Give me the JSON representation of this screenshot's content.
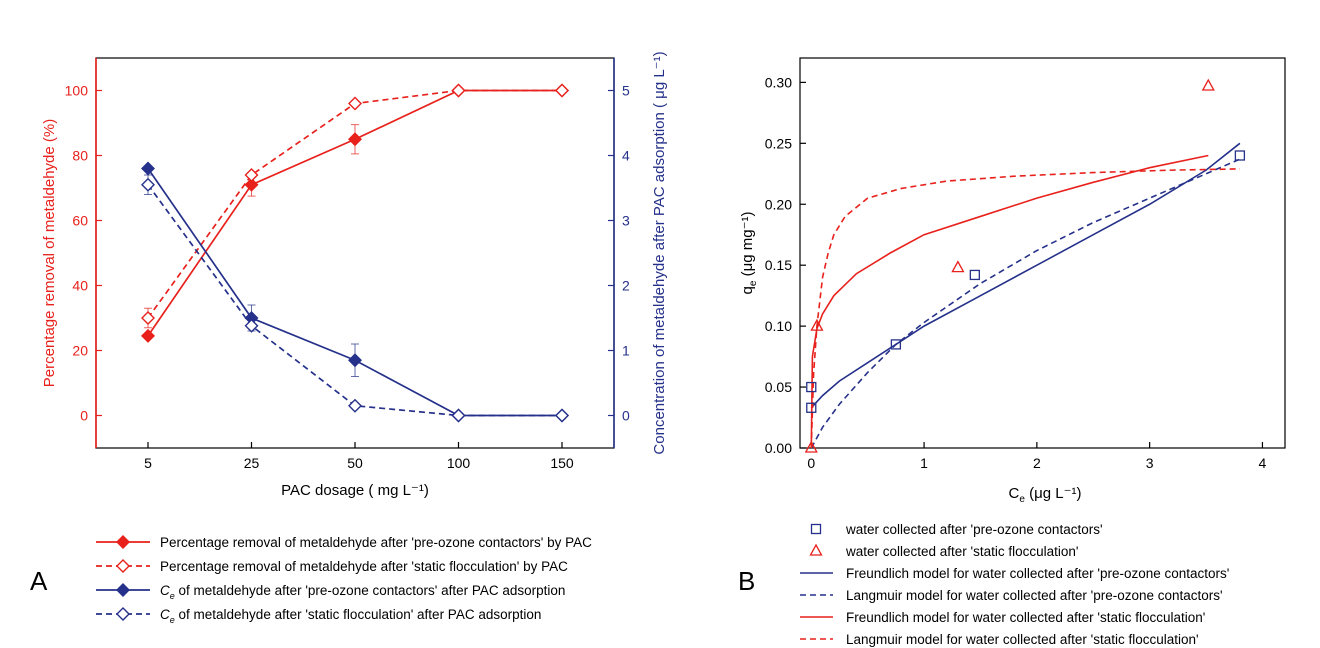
{
  "panels": {
    "a": {
      "letter": "A"
    },
    "b": {
      "letter": "B"
    }
  },
  "colors": {
    "red": "#e8211c",
    "blue": "#25318a",
    "axis": "#000000"
  },
  "chart_data": [
    {
      "id": "A",
      "type": "line",
      "categories": [
        "5",
        "25",
        "50",
        "100",
        "150"
      ],
      "xlabel": "PAC dosage ( mg L⁻¹)",
      "ylabel_left": "Percentage removal of metaldehyde (%)",
      "ylabel_right": "Concentration of metaldehyde after PAC adsorption  ( μg L⁻¹)",
      "ylim_left": [
        -10,
        110
      ],
      "yticks_left": [
        0,
        20,
        40,
        60,
        80,
        100
      ],
      "ylim_right": [
        -0.5,
        5.5
      ],
      "yticks_right": [
        0,
        1,
        2,
        3,
        4,
        5
      ],
      "grid": false,
      "legend_position": "below",
      "series": [
        {
          "name": "Percentage removal of metaldehyde after 'pre-ozone contactors' by PAC",
          "axis": "left",
          "color": "red",
          "dash": false,
          "marker": "diamond-filled",
          "values": [
            24.5,
            71,
            85,
            100,
            100
          ],
          "errors": [
            0,
            3.5,
            4.5,
            0,
            0
          ]
        },
        {
          "name": "Percentage removal of metaldehyde after 'static flocculation' by PAC",
          "axis": "left",
          "color": "red",
          "dash": true,
          "marker": "diamond-open",
          "values": [
            30,
            74,
            96,
            100,
            100
          ],
          "errors": [
            3,
            0,
            0,
            0,
            0
          ]
        },
        {
          "name": "of metaldehyde after 'pre-ozone contactors' after PAC adsorption",
          "name_prefix": "C",
          "name_sub": "e",
          "axis": "right",
          "color": "blue",
          "dash": false,
          "marker": "diamond-filled",
          "values": [
            3.8,
            1.5,
            0.85,
            0,
            0
          ],
          "errors": [
            0,
            0.2,
            0.25,
            0,
            0
          ]
        },
        {
          "name": "of metaldehyde after 'static flocculation' after PAC adsorption",
          "name_prefix": "C",
          "name_sub": "e",
          "axis": "right",
          "color": "blue",
          "dash": true,
          "marker": "diamond-open",
          "values": [
            3.55,
            1.38,
            0.15,
            0,
            0
          ],
          "errors": [
            0.15,
            0,
            0,
            0,
            0
          ]
        }
      ]
    },
    {
      "id": "B",
      "type": "scatter",
      "xlabel_main": "C",
      "xlabel_sub": "e",
      "xlabel_rest": " (μg L⁻¹)",
      "ylabel_main": "q",
      "ylabel_sub": "e",
      "ylabel_rest": " (μg mg⁻¹)",
      "xlim": [
        -0.1,
        4.2
      ],
      "xticks": [
        0,
        1,
        2,
        3,
        4
      ],
      "ylim": [
        0,
        0.32
      ],
      "yticks": [
        "0.00",
        "0.05",
        "0.10",
        "0.15",
        "0.20",
        "0.25",
        "0.30"
      ],
      "grid": false,
      "legend_position": "below",
      "scatter_series": [
        {
          "name": "water collected after 'pre-ozone contactors'",
          "color": "blue",
          "marker": "square-open",
          "x": [
            0,
            0,
            0.75,
            1.45,
            3.8
          ],
          "y": [
            0.033,
            0.05,
            0.085,
            0.142,
            0.24
          ]
        },
        {
          "name": "water collected after 'static flocculation'",
          "color": "red",
          "marker": "triangle-open",
          "x": [
            0,
            0.05,
            1.3,
            3.52
          ],
          "y": [
            0.0,
            0.1,
            0.148,
            0.297
          ]
        }
      ],
      "model_series": [
        {
          "name": "Freundlich model for water collected after 'pre-ozone contactors'",
          "color": "blue",
          "dash": false,
          "x": [
            0,
            0.1,
            0.25,
            0.5,
            0.75,
            1,
            1.5,
            2,
            2.5,
            3,
            3.5,
            3.8
          ],
          "y": [
            0.033,
            0.043,
            0.055,
            0.07,
            0.085,
            0.1,
            0.125,
            0.15,
            0.175,
            0.2,
            0.228,
            0.25
          ]
        },
        {
          "name": "Langmuir model for water collected after 'pre-ozone contactors'",
          "color": "blue",
          "dash": true,
          "x": [
            0,
            0.1,
            0.25,
            0.5,
            0.75,
            1,
            1.5,
            2,
            2.5,
            3,
            3.5,
            3.8
          ],
          "y": [
            0.0,
            0.017,
            0.036,
            0.062,
            0.085,
            0.103,
            0.135,
            0.162,
            0.185,
            0.205,
            0.225,
            0.237
          ]
        },
        {
          "name": "Freundlich model for water collected after 'static flocculation'",
          "color": "red",
          "dash": false,
          "x": [
            0,
            0.01,
            0.05,
            0.1,
            0.2,
            0.4,
            0.7,
            1,
            1.5,
            2,
            2.5,
            3,
            3.52
          ],
          "y": [
            0.0,
            0.075,
            0.098,
            0.11,
            0.125,
            0.143,
            0.16,
            0.175,
            0.19,
            0.205,
            0.218,
            0.23,
            0.24
          ]
        },
        {
          "name": "Langmuir model for water collected after 'static flocculation'",
          "color": "red",
          "dash": true,
          "x": [
            0,
            0.02,
            0.05,
            0.1,
            0.15,
            0.2,
            0.3,
            0.5,
            0.8,
            1.2,
            1.8,
            2.5,
            3.2,
            3.8
          ],
          "y": [
            0.0,
            0.06,
            0.1,
            0.14,
            0.16,
            0.175,
            0.19,
            0.205,
            0.213,
            0.219,
            0.223,
            0.226,
            0.228,
            0.229
          ]
        }
      ]
    }
  ]
}
